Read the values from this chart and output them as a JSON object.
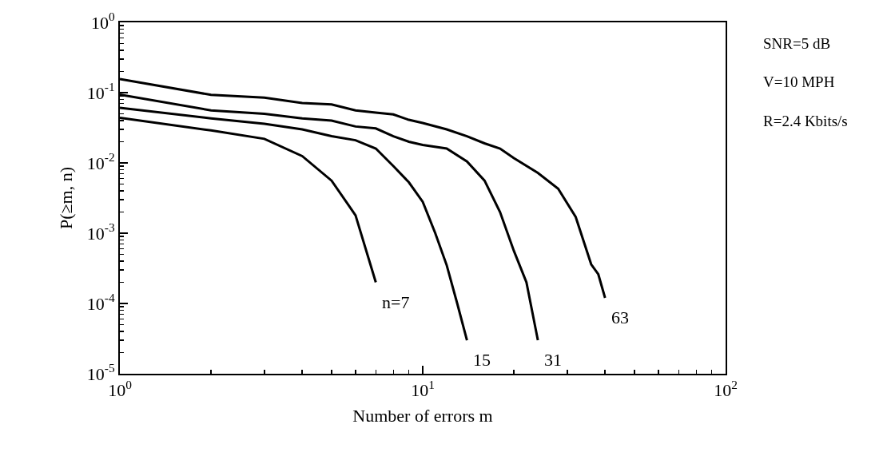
{
  "chart_data": {
    "type": "line",
    "xlabel": "Number of errors m",
    "ylabel": "P(≥m, n)",
    "log": "xy",
    "grid": false,
    "legend": false,
    "marker": "none",
    "line_style": "solid",
    "xlim": [
      1,
      100
    ],
    "xticks": [
      {
        "value": 1,
        "label": "10$^{0}$"
      },
      {
        "value": 10,
        "label": "10$^{1}$"
      },
      {
        "value": 100,
        "label": "10$^{2}$"
      }
    ],
    "ylim": [
      1e-05,
      1
    ],
    "yticks": [
      {
        "value": 1e-05,
        "label": "10$^{-5}$"
      },
      {
        "value": 0.0001,
        "label": "10$^{-4}$"
      },
      {
        "value": 0.001,
        "label": "10$^{-3}$"
      },
      {
        "value": 0.01,
        "label": "10$^{-2}$"
      },
      {
        "value": 0.1,
        "label": "10$^{-1}$"
      },
      {
        "value": 1,
        "label": "10$^{0}$"
      }
    ],
    "series": [
      {
        "name": "63",
        "color": "#000000",
        "x": [
          1,
          2,
          3,
          4,
          5,
          6,
          7,
          8,
          9,
          10,
          12,
          14,
          16,
          18,
          20,
          24,
          28,
          32,
          36,
          38,
          40
        ],
        "values": [
          0.156,
          0.093,
          0.085,
          0.071,
          0.068,
          0.056,
          0.052,
          0.049,
          0.041,
          0.037,
          0.03,
          0.024,
          0.019,
          0.016,
          0.0117,
          0.0072,
          0.0043,
          0.0017,
          0.00036,
          0.00026,
          0.00012
        ]
      },
      {
        "name": "31",
        "color": "#000000",
        "x": [
          1,
          2,
          3,
          4,
          5,
          6,
          7,
          8,
          9,
          10,
          12,
          14,
          16,
          18,
          20,
          22,
          24
        ],
        "values": [
          0.094,
          0.056,
          0.05,
          0.043,
          0.04,
          0.033,
          0.031,
          0.024,
          0.02,
          0.018,
          0.016,
          0.0105,
          0.0056,
          0.002,
          0.00056,
          0.0002,
          3e-05
        ]
      },
      {
        "name": "15",
        "color": "#000000",
        "x": [
          1,
          2,
          3,
          4,
          5,
          6,
          7,
          8,
          9,
          10,
          11,
          12,
          13,
          14
        ],
        "values": [
          0.061,
          0.043,
          0.036,
          0.03,
          0.024,
          0.021,
          0.016,
          0.009,
          0.0053,
          0.0028,
          0.001,
          0.00035,
          0.0001,
          3e-05
        ]
      },
      {
        "name": "n=7",
        "color": "#000000",
        "x": [
          1,
          2,
          3,
          4,
          5,
          6,
          7
        ],
        "values": [
          0.044,
          0.029,
          0.022,
          0.0125,
          0.0056,
          0.0018,
          0.0002
        ]
      }
    ],
    "annotations": [
      "SNR=5 dB",
      "V=10 MPH",
      "R=2.4 Kbits/s"
    ]
  }
}
